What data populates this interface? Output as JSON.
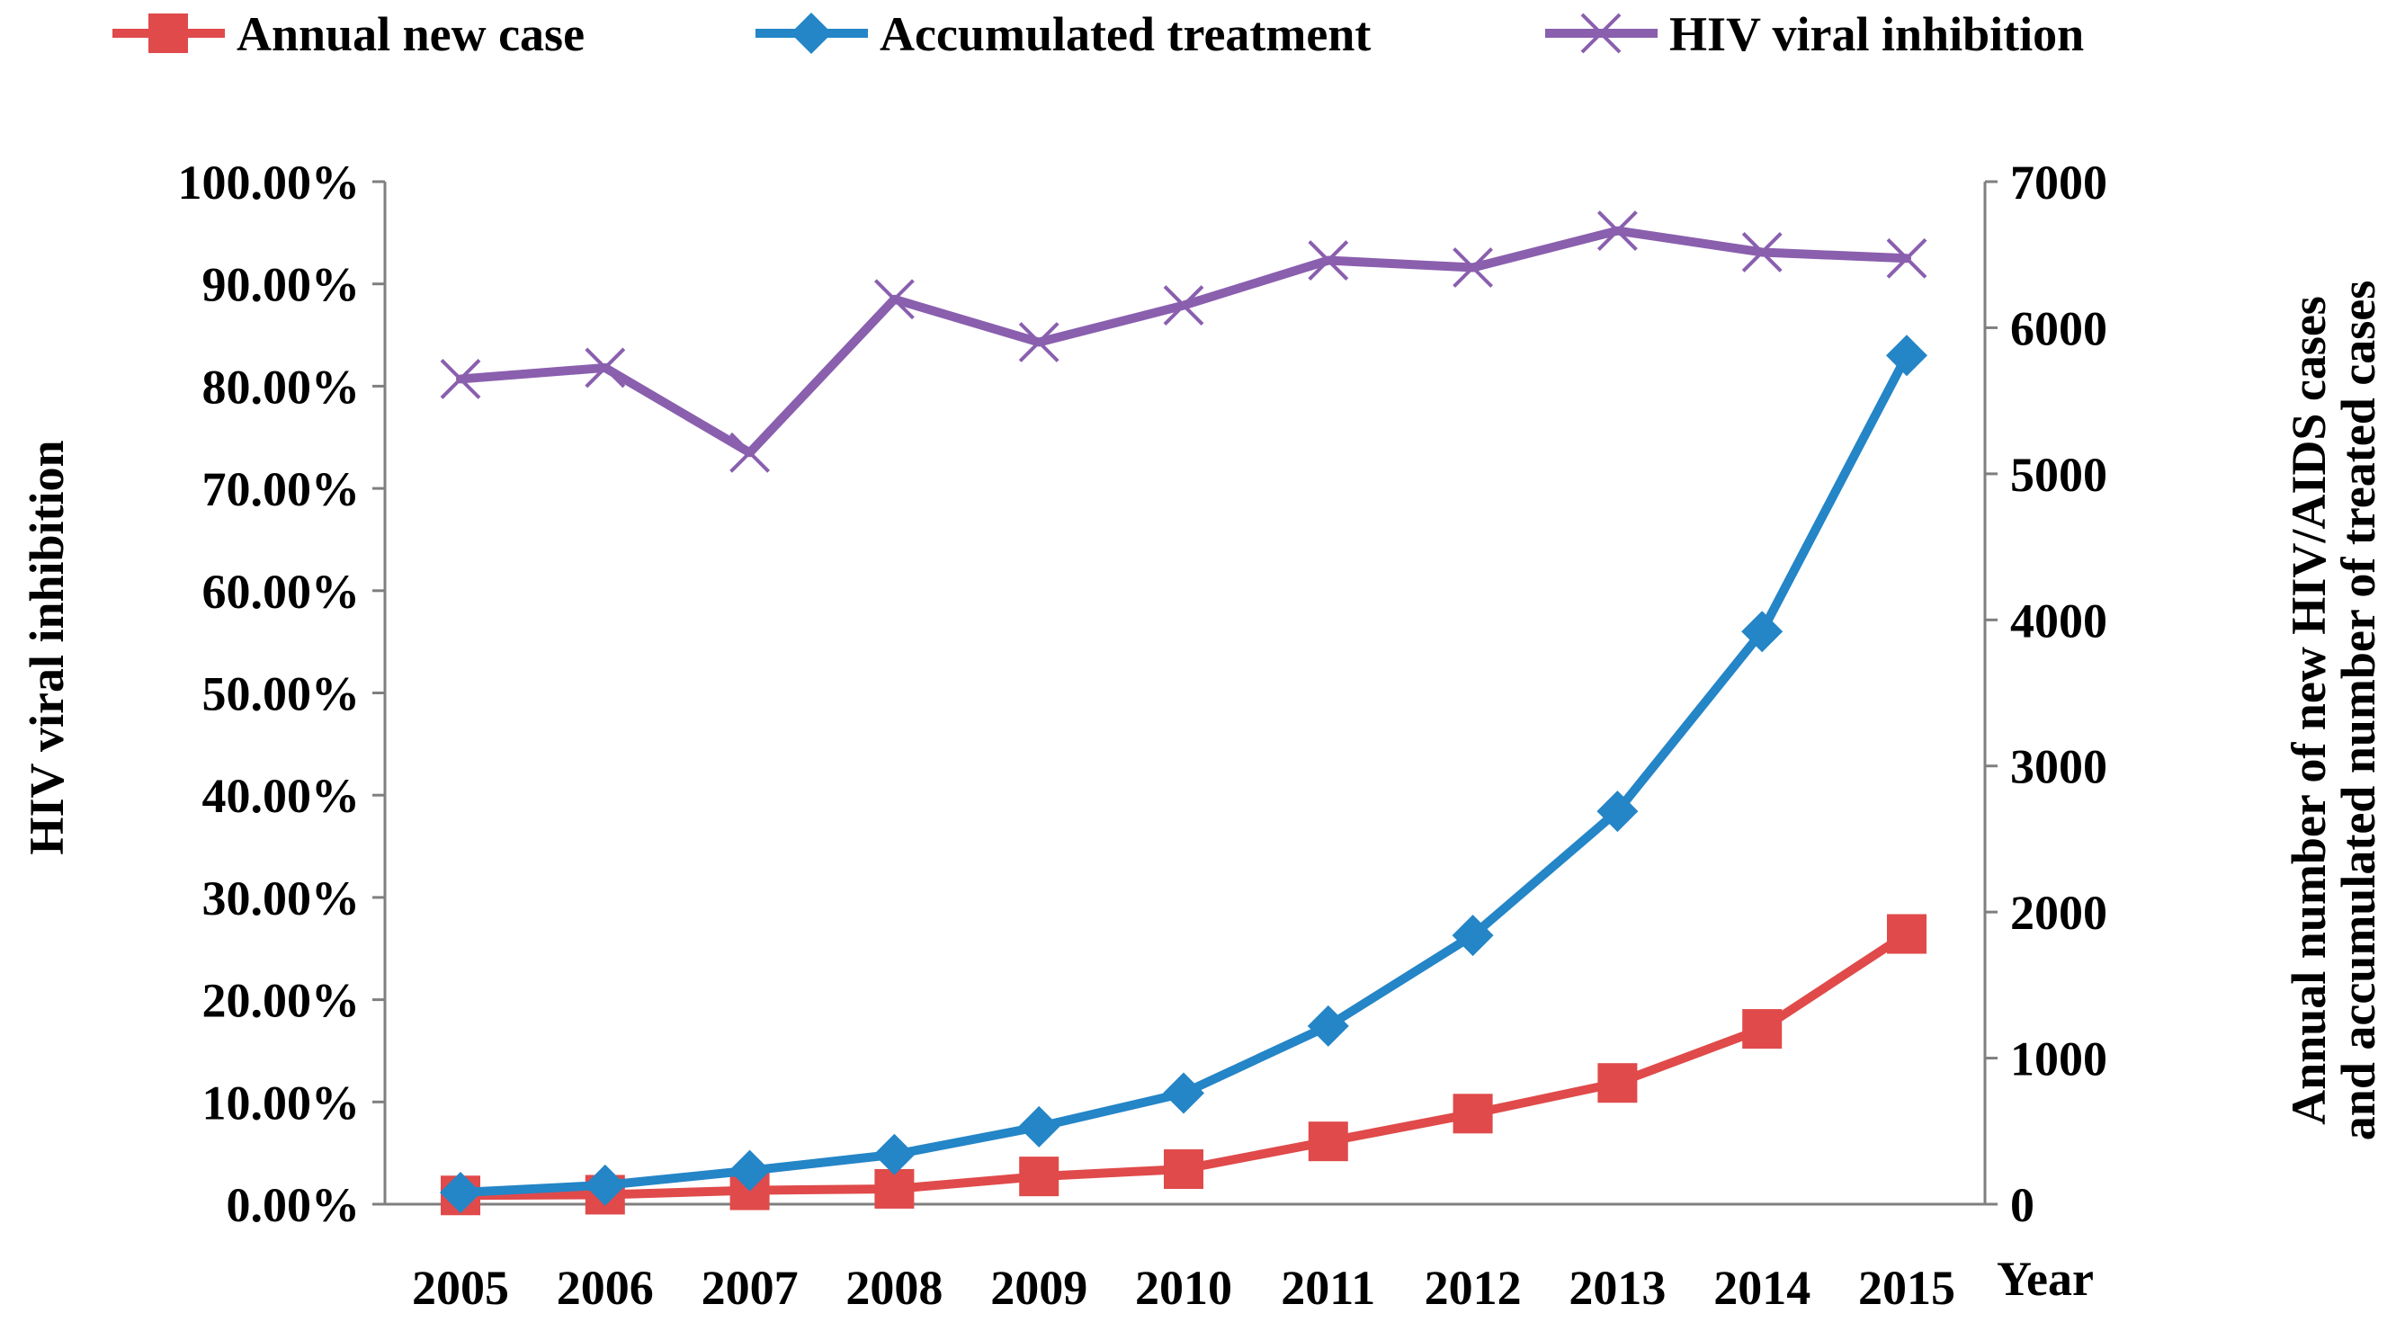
{
  "colors": {
    "annual_new_case": "#e04a4a",
    "accumulated_treatment": "#2485c7",
    "hiv_viral_inhibition": "#8a5fae",
    "axis": "#7f7f7f",
    "text": "#000000"
  },
  "chart_data": {
    "type": "line",
    "categories": [
      "2005",
      "2006",
      "2007",
      "2008",
      "2009",
      "2010",
      "2011",
      "2012",
      "2013",
      "2014",
      "2015"
    ],
    "xlabel": "Year",
    "left_axis": {
      "label": "HIV viral inhibition",
      "ylim": [
        0,
        100
      ],
      "ticks": [
        "0.00%",
        "10.00%",
        "20.00%",
        "30.00%",
        "40.00%",
        "50.00%",
        "60.00%",
        "70.00%",
        "80.00%",
        "90.00%",
        "100.00%"
      ]
    },
    "right_axis": {
      "label_line1": "Annual number  of  new HIV/AIDS cases",
      "label_line2": "and accumulated number of treated cases",
      "ylim": [
        0,
        7000
      ],
      "ticks": [
        "0",
        "1000",
        "2000",
        "3000",
        "4000",
        "5000",
        "6000",
        "7000"
      ]
    },
    "legend_position": "top",
    "series": [
      {
        "name": "Annual new case",
        "axis": "right",
        "marker": "square",
        "color_key": "annual_new_case",
        "values": [
          60,
          65,
          95,
          105,
          190,
          240,
          430,
          620,
          830,
          1200,
          1850
        ]
      },
      {
        "name": "Accumulated treatment",
        "axis": "right",
        "marker": "diamond",
        "color_key": "accumulated_treatment",
        "values": [
          80,
          130,
          230,
          340,
          530,
          760,
          1220,
          1840,
          2690,
          3920,
          5810
        ]
      },
      {
        "name": "HIV viral inhibition",
        "axis": "left",
        "marker": "x",
        "color_key": "hiv_viral_inhibition",
        "values": [
          80.7,
          81.8,
          73.5,
          88.5,
          84.3,
          87.9,
          92.3,
          91.6,
          95.2,
          93.1,
          92.5
        ]
      }
    ]
  }
}
